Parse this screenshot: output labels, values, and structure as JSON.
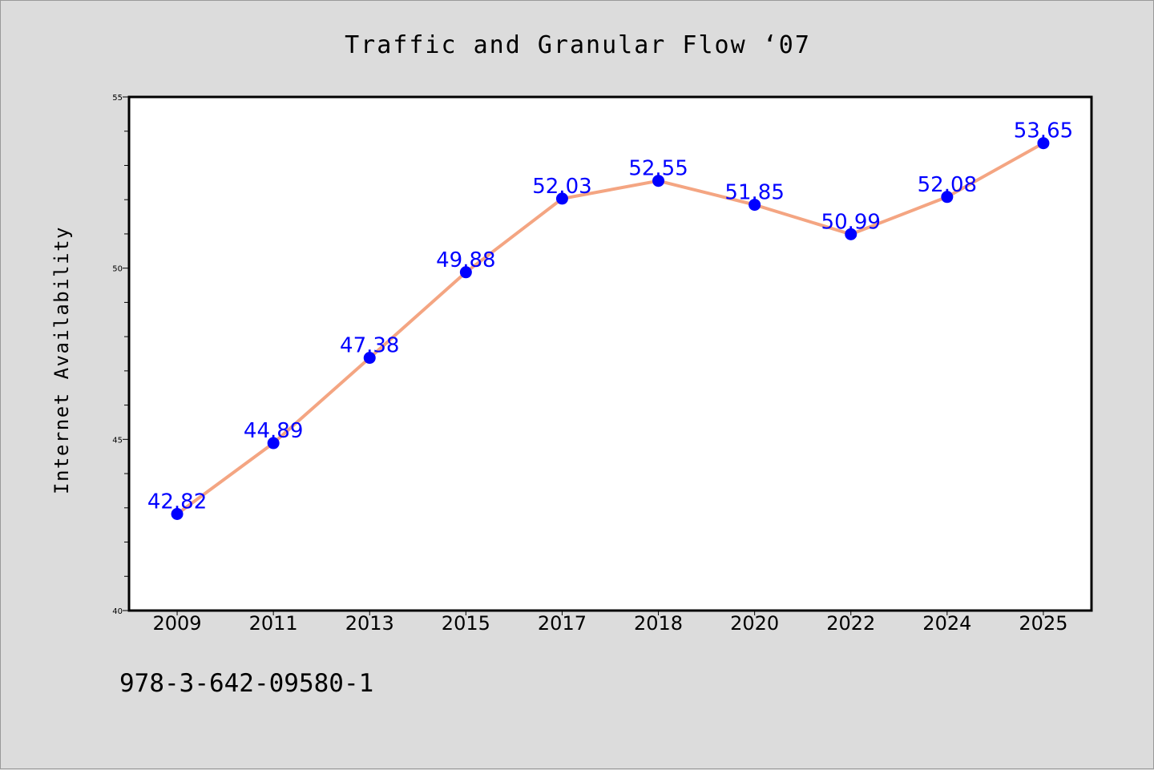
{
  "chart_data": {
    "type": "line",
    "title": "Traffic and Granular Flow  ‘07",
    "xlabel": "",
    "ylabel": "Internet Availability",
    "categories": [
      "2009",
      "2011",
      "2013",
      "2015",
      "2017",
      "2018",
      "2020",
      "2022",
      "2024",
      "2025"
    ],
    "series": [
      {
        "values": [
          42.82,
          44.89,
          47.38,
          49.88,
          52.03,
          52.55,
          51.85,
          50.99,
          52.08,
          53.65
        ],
        "labels": [
          "42.82",
          "44.89",
          "47.38",
          "49.88",
          "52.03",
          "52.55",
          "51.85",
          "50.99",
          "52.08",
          "53.65"
        ]
      }
    ],
    "ylim": [
      40,
      55
    ],
    "y_ticks": [
      "40",
      "45",
      "50",
      "55"
    ],
    "grid": false,
    "colors": {
      "line": "#f4a582",
      "marker": "#0000ff",
      "data_label": "#0000ff",
      "plot_background": "#ffffff",
      "page_background": "#dcdcdc"
    }
  },
  "footer": {
    "isbn": "978-3-642-09580-1"
  }
}
